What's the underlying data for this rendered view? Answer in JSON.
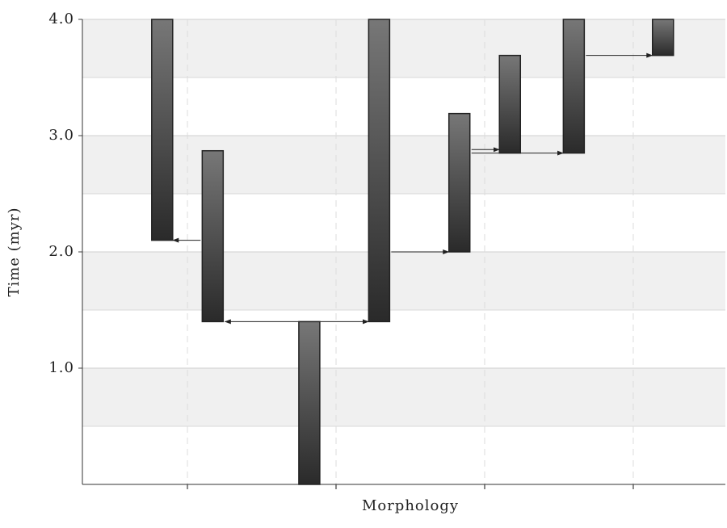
{
  "chart_data": {
    "type": "floating-bar",
    "xlabel": "Morphology",
    "ylabel": "Time (myr)",
    "x": [
      0.83,
      1.17,
      1.82,
      2.29,
      2.83,
      3.17,
      3.6,
      4.2
    ],
    "low": [
      2.1,
      1.4,
      0,
      1.4,
      2.0,
      2.85,
      2.85,
      3.69
    ],
    "high": [
      4.0,
      2.87,
      1.4,
      4.0,
      3.19,
      3.69,
      4.0,
      4.0
    ],
    "color": "#222222",
    "arrows": [
      {
        "x1": 1.17,
        "x2": 0.83,
        "y": 2.1,
        "double": false
      },
      {
        "x1": 1.17,
        "x2": 2.29,
        "y": 1.4,
        "double": true
      },
      {
        "x1": 2.29,
        "x2": 2.83,
        "y": 2.0,
        "double": false
      },
      {
        "x1": 2.83,
        "x2": 3.17,
        "y": 2.88,
        "double": false
      },
      {
        "x1": 2.83,
        "x2": 3.6,
        "y": 2.85,
        "double": false
      },
      {
        "x1": 3.6,
        "x2": 4.2,
        "y": 3.69,
        "double": false
      }
    ],
    "xlim": [
      0.293,
      4.62
    ],
    "xticks": [
      1,
      2,
      3,
      4
    ],
    "ylim": [
      0,
      4.0
    ],
    "yticks": [
      {
        "value": 1,
        "label": "1.0"
      },
      {
        "value": 2,
        "label": "2.0"
      },
      {
        "value": 3,
        "label": "3.0"
      },
      {
        "value": 4,
        "label": "4.0"
      }
    ],
    "minor_yticks": [
      0.5,
      1.5,
      2.5,
      3.5
    ],
    "grid": true
  }
}
